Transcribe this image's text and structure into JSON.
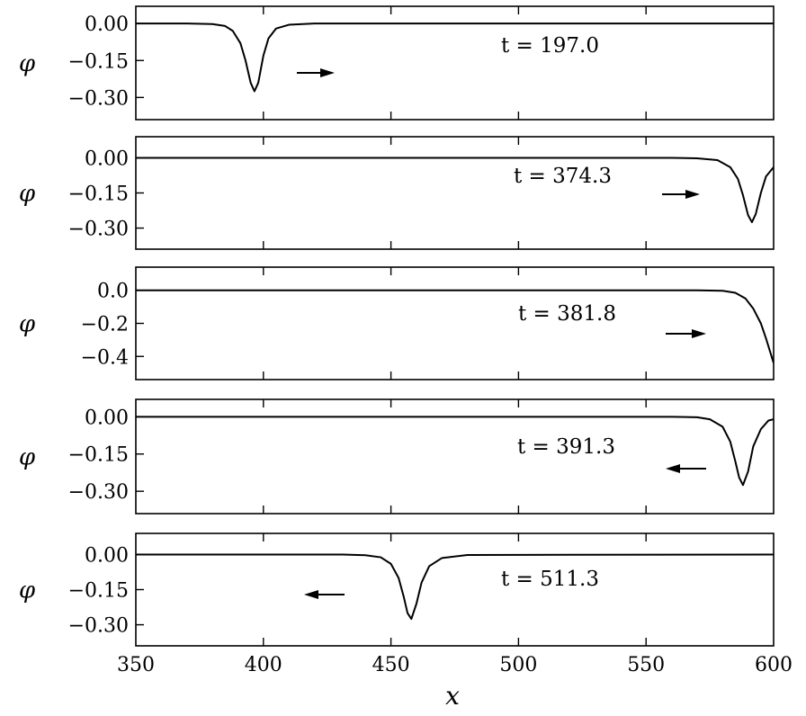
{
  "figure": {
    "xlabel": "x",
    "xlim": [
      350,
      600
    ],
    "xticks": [
      350,
      400,
      450,
      500,
      550,
      600
    ],
    "colors": {
      "line": "#000000",
      "axes": "#000000",
      "background": "#ffffff"
    }
  },
  "chart_data": [
    {
      "type": "line",
      "ylabel": "φ",
      "annotation": "t = 197.0",
      "arrow": "right",
      "xlim": [
        350,
        600
      ],
      "ylim": [
        -0.39,
        0.07
      ],
      "yticks": [
        "0.00",
        "-0.15",
        "-0.30"
      ],
      "ytick_values": [
        0.0,
        -0.15,
        -0.3
      ],
      "series": [
        {
          "values_x": [
            350,
            370,
            380,
            385,
            388,
            391,
            393,
            395,
            396.5,
            398,
            400,
            402,
            405,
            410,
            420,
            600
          ],
          "values_y": [
            0,
            0,
            -0.002,
            -0.01,
            -0.03,
            -0.08,
            -0.15,
            -0.24,
            -0.275,
            -0.24,
            -0.13,
            -0.06,
            -0.02,
            -0.005,
            0,
            0
          ]
        }
      ]
    },
    {
      "type": "line",
      "ylabel": "φ",
      "annotation": "t = 374.3",
      "arrow": "right",
      "xlim": [
        350,
        600
      ],
      "ylim": [
        -0.39,
        0.09
      ],
      "yticks": [
        "0.00",
        "-0.15",
        "-0.30"
      ],
      "ytick_values": [
        0.0,
        -0.15,
        -0.3
      ],
      "series": [
        {
          "values_x": [
            350,
            560,
            570,
            578,
            583,
            586,
            588,
            590,
            591.5,
            593,
            595,
            597,
            600
          ],
          "values_y": [
            0,
            0,
            -0.002,
            -0.01,
            -0.04,
            -0.09,
            -0.16,
            -0.245,
            -0.275,
            -0.24,
            -0.15,
            -0.08,
            -0.04
          ]
        }
      ]
    },
    {
      "type": "line",
      "ylabel": "φ",
      "annotation": "t = 381.8",
      "arrow": "right",
      "xlim": [
        350,
        600
      ],
      "ylim": [
        -0.54,
        0.14
      ],
      "yticks": [
        "0.0",
        "-0.2",
        "-0.4"
      ],
      "ytick_values": [
        0.0,
        -0.2,
        -0.4
      ],
      "series": [
        {
          "values_x": [
            350,
            570,
            580,
            585,
            589,
            592,
            595,
            597,
            599,
            600
          ],
          "values_y": [
            0,
            0,
            -0.003,
            -0.015,
            -0.05,
            -0.11,
            -0.2,
            -0.29,
            -0.39,
            -0.44
          ]
        }
      ]
    },
    {
      "type": "line",
      "ylabel": "φ",
      "annotation": "t = 391.3",
      "arrow": "left",
      "xlim": [
        350,
        600
      ],
      "ylim": [
        -0.39,
        0.07
      ],
      "yticks": [
        "0.00",
        "-0.15",
        "-0.30"
      ],
      "ytick_values": [
        0.0,
        -0.15,
        -0.3
      ],
      "series": [
        {
          "values_x": [
            350,
            560,
            570,
            575,
            580,
            583,
            585,
            586.5,
            588,
            590,
            592,
            595,
            598,
            600
          ],
          "values_y": [
            0,
            0,
            -0.002,
            -0.01,
            -0.04,
            -0.1,
            -0.18,
            -0.245,
            -0.275,
            -0.22,
            -0.12,
            -0.05,
            -0.015,
            -0.01
          ]
        }
      ]
    },
    {
      "type": "line",
      "ylabel": "φ",
      "annotation": "t = 511.3",
      "arrow": "left",
      "xlim": [
        350,
        600
      ],
      "ylim": [
        -0.39,
        0.09
      ],
      "yticks": [
        "0.00",
        "-0.15",
        "-0.30"
      ],
      "ytick_values": [
        0.0,
        -0.15,
        -0.3
      ],
      "series": [
        {
          "values_x": [
            350,
            430,
            440,
            446,
            450,
            453,
            455,
            456.5,
            458,
            460,
            462,
            465,
            470,
            480,
            600
          ],
          "values_y": [
            0,
            0,
            -0.003,
            -0.012,
            -0.04,
            -0.1,
            -0.18,
            -0.25,
            -0.275,
            -0.21,
            -0.12,
            -0.05,
            -0.015,
            -0.002,
            0
          ]
        }
      ]
    }
  ]
}
